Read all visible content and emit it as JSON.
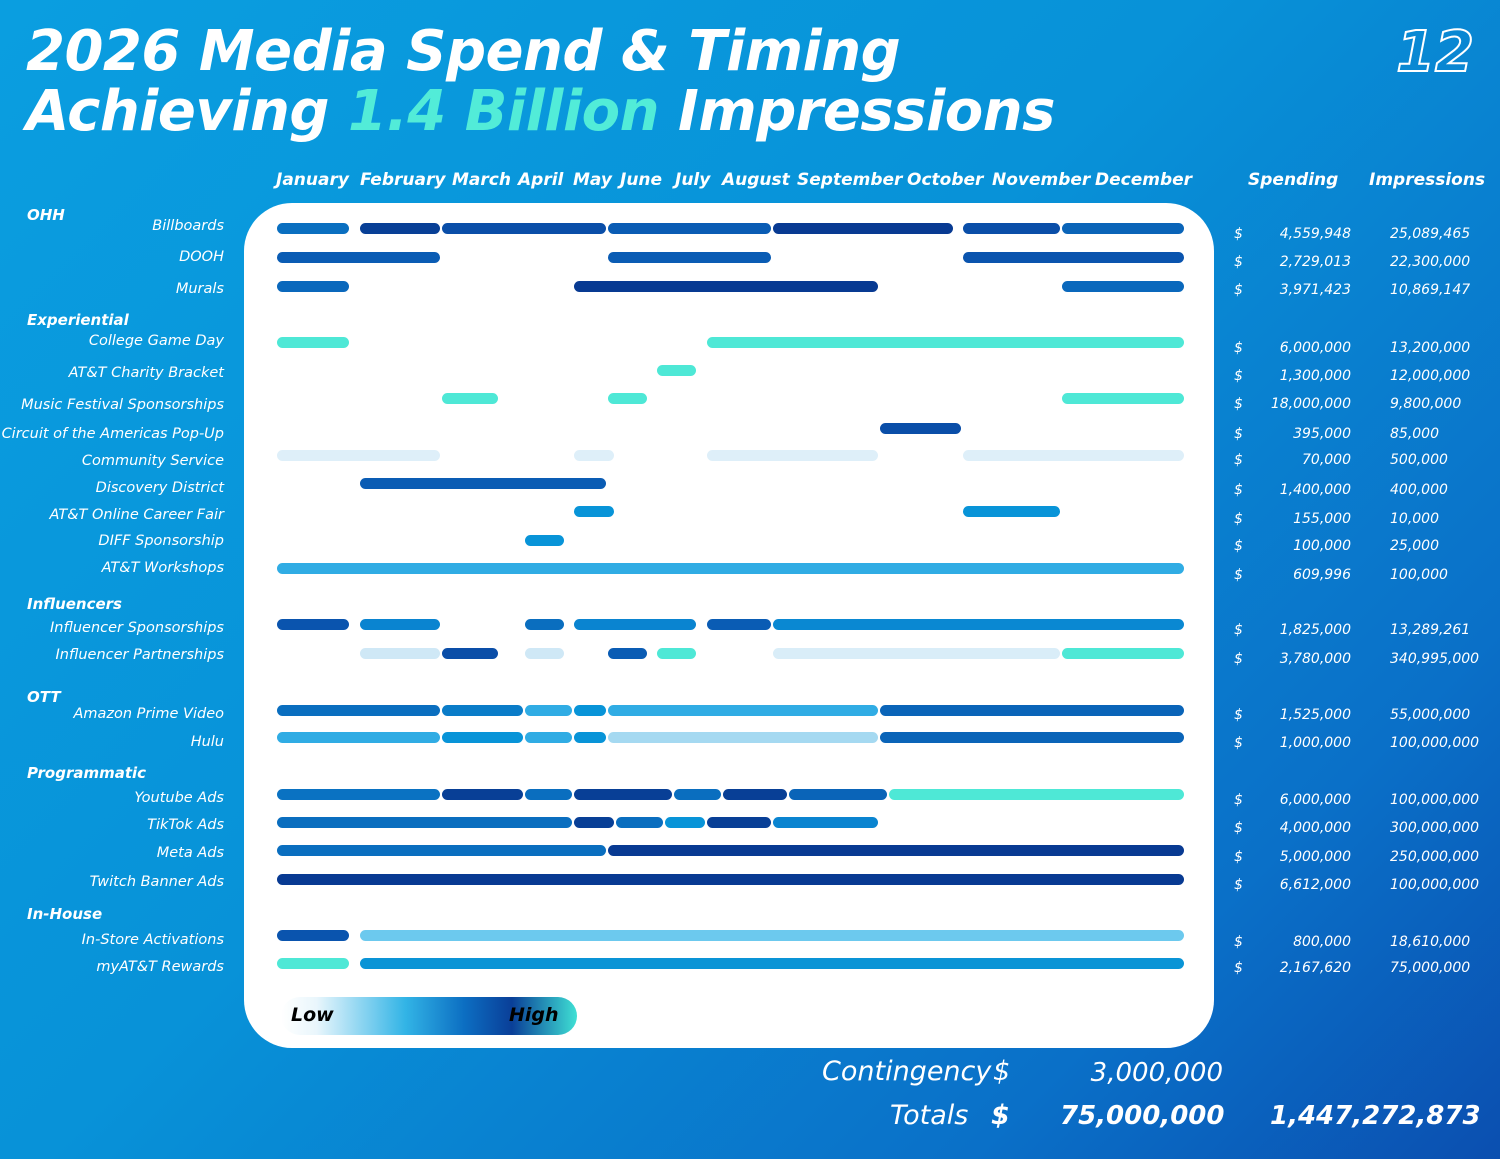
{
  "title": {
    "line1": "2026 Media Spend & Timing",
    "line2_pre": "Achieving ",
    "line2_accent": "1.4 Billion",
    "line2_post": " Impressions"
  },
  "page_number": "12",
  "colors": {
    "accent": "#52ecd8",
    "panel": "#ffffff",
    "background": "#0892d8"
  },
  "columns": {
    "spending": "Spending",
    "impressions": "Impressions"
  },
  "legend": {
    "low": "Low",
    "high": "High"
  },
  "footer": {
    "contingency_label": "Contingency",
    "contingency_currency": "$",
    "contingency_value": "3,000,000",
    "totals_label": "Totals",
    "totals_currency": "$",
    "totals_spend": "75,000,000",
    "totals_impressions": "1,447,272,873"
  },
  "chart_data": {
    "type": "table",
    "months": [
      "January",
      "February",
      "March",
      "April",
      "May",
      "June",
      "July",
      "August",
      "September",
      "October",
      "November",
      "December"
    ],
    "categories": [
      {
        "name": "OHH",
        "rows": [
          {
            "label": "Billboards",
            "currency": "$",
            "spending": "4,559,948",
            "impressions": "25,089,465",
            "segments": [
              {
                "start": 1,
                "end": 1.9,
                "color": "#0a6fc0"
              },
              {
                "start": 2,
                "end": 3,
                "color": "#083f96"
              },
              {
                "start": 3,
                "end": 5,
                "color": "#0a4ea8"
              },
              {
                "start": 5,
                "end": 7,
                "color": "#0a5cb4"
              },
              {
                "start": 7,
                "end": 9.2,
                "color": "#083a92"
              },
              {
                "start": 9.3,
                "end": 10.5,
                "color": "#0a4ea8"
              },
              {
                "start": 10.5,
                "end": 12,
                "color": "#0a64b8"
              }
            ]
          },
          {
            "label": "DOOH",
            "currency": "$",
            "spending": "2,729,013",
            "impressions": "22,300,000",
            "segments": [
              {
                "start": 1,
                "end": 3,
                "color": "#0a5cb4"
              },
              {
                "start": 5,
                "end": 7,
                "color": "#0a5cb4"
              },
              {
                "start": 9.3,
                "end": 12,
                "color": "#0a54ae"
              }
            ]
          },
          {
            "label": "Murals",
            "currency": "$",
            "spending": "3,971,423",
            "impressions": "10,869,147",
            "segments": [
              {
                "start": 1,
                "end": 1.9,
                "color": "#0a68bc"
              },
              {
                "start": 4.6,
                "end": 8.3,
                "color": "#083a92"
              },
              {
                "start": 10.5,
                "end": 12,
                "color": "#0a68bc"
              }
            ]
          }
        ]
      },
      {
        "name": "Experiential",
        "rows": [
          {
            "label": "College Game Day",
            "currency": "$",
            "spending": "6,000,000",
            "impressions": "13,200,000",
            "segments": [
              {
                "start": 1,
                "end": 1.9,
                "color": "#4ee8d6"
              },
              {
                "start": 6.2,
                "end": 12,
                "color": "#4ee8d6"
              }
            ]
          },
          {
            "label": "AT&T Charity Bracket",
            "currency": "$",
            "spending": "1,300,000",
            "impressions": "12,000,000",
            "segments": [
              {
                "start": 5.6,
                "end": 6.1,
                "color": "#4ee8d6"
              }
            ]
          },
          {
            "label": "Music Festival Sponsorships",
            "currency": "$",
            "spending": "18,000,000",
            "impressions": "9,800,000",
            "segments": [
              {
                "start": 3,
                "end": 3.7,
                "color": "#4ee8d6"
              },
              {
                "start": 5,
                "end": 5.5,
                "color": "#4ee8d6"
              },
              {
                "start": 10.5,
                "end": 12,
                "color": "#4ee8d6"
              }
            ]
          },
          {
            "label": "Circuit of the Americas Pop-Up",
            "currency": "$",
            "spending": "395,000",
            "impressions": "85,000",
            "segments": [
              {
                "start": 8.3,
                "end": 9.3,
                "color": "#0a4ea8"
              }
            ]
          },
          {
            "label": "Community Service",
            "currency": "$",
            "spending": "70,000",
            "impressions": "500,000",
            "segments": [
              {
                "start": 1,
                "end": 3,
                "color": "#deeff9"
              },
              {
                "start": 4.6,
                "end": 5.1,
                "color": "#deeff9"
              },
              {
                "start": 6.2,
                "end": 8.3,
                "color": "#deeff9"
              },
              {
                "start": 9.3,
                "end": 12,
                "color": "#deeff9"
              }
            ]
          },
          {
            "label": "Discovery District",
            "currency": "$",
            "spending": "1,400,000",
            "impressions": "400,000",
            "segments": [
              {
                "start": 2,
                "end": 5,
                "color": "#0a5cb4"
              }
            ]
          },
          {
            "label": "AT&T Online Career Fair",
            "currency": "$",
            "spending": "155,000",
            "impressions": "10,000",
            "segments": [
              {
                "start": 4.6,
                "end": 5.1,
                "color": "#0894d8"
              },
              {
                "start": 9.3,
                "end": 10.5,
                "color": "#0894d8"
              }
            ]
          },
          {
            "label": "DIFF Sponsorship",
            "currency": "$",
            "spending": "100,000",
            "impressions": "25,000",
            "segments": [
              {
                "start": 4,
                "end": 4.5,
                "color": "#0894d8"
              }
            ]
          },
          {
            "label": "AT&T Workshops",
            "currency": "$",
            "spending": "609,996",
            "impressions": "100,000",
            "segments": [
              {
                "start": 1,
                "end": 12,
                "color": "#30ace4"
              }
            ]
          }
        ]
      },
      {
        "name": "Influencers",
        "rows": [
          {
            "label": "Influencer Sponsorships",
            "currency": "$",
            "spending": "1,825,000",
            "impressions": "13,289,261",
            "segments": [
              {
                "start": 1,
                "end": 1.9,
                "color": "#0a54ae"
              },
              {
                "start": 2,
                "end": 3,
                "color": "#0a84d0"
              },
              {
                "start": 4,
                "end": 4.5,
                "color": "#0a6ebf"
              },
              {
                "start": 4.6,
                "end": 6.1,
                "color": "#0a84d0"
              },
              {
                "start": 6.2,
                "end": 7,
                "color": "#0a5cb4"
              },
              {
                "start": 7,
                "end": 12,
                "color": "#0a88d2"
              }
            ]
          },
          {
            "label": "Influencer Partnerships",
            "currency": "$",
            "spending": "3,780,000",
            "impressions": "340,995,000",
            "segments": [
              {
                "start": 2,
                "end": 3,
                "color": "#cfe8f6"
              },
              {
                "start": 3,
                "end": 3.7,
                "color": "#0a4ea8"
              },
              {
                "start": 4,
                "end": 4.5,
                "color": "#cfe8f6"
              },
              {
                "start": 5,
                "end": 5.5,
                "color": "#0a5cb4"
              },
              {
                "start": 5.6,
                "end": 6.1,
                "color": "#4ee8d6"
              },
              {
                "start": 7,
                "end": 10.5,
                "color": "#d9edf8"
              },
              {
                "start": 10.5,
                "end": 12,
                "color": "#4ee8d6"
              }
            ]
          }
        ]
      },
      {
        "name": "OTT",
        "rows": [
          {
            "label": "Amazon Prime Video",
            "currency": "$",
            "spending": "1,525,000",
            "impressions": "55,000,000",
            "segments": [
              {
                "start": 1,
                "end": 3,
                "color": "#0a6ebf"
              },
              {
                "start": 3,
                "end": 4,
                "color": "#0a7cc8"
              },
              {
                "start": 4,
                "end": 4.6,
                "color": "#30ace4"
              },
              {
                "start": 4.6,
                "end": 5,
                "color": "#0894d8"
              },
              {
                "start": 5,
                "end": 8.3,
                "color": "#30ace4"
              },
              {
                "start": 8.3,
                "end": 12,
                "color": "#0a64b8"
              }
            ]
          },
          {
            "label": "Hulu",
            "currency": "$",
            "spending": "1,000,000",
            "impressions": "100,000,000",
            "segments": [
              {
                "start": 1,
                "end": 3,
                "color": "#30ace4"
              },
              {
                "start": 3,
                "end": 4,
                "color": "#0894d8"
              },
              {
                "start": 4,
                "end": 4.6,
                "color": "#30ace4"
              },
              {
                "start": 4.6,
                "end": 5,
                "color": "#0894d8"
              },
              {
                "start": 5,
                "end": 8.3,
                "color": "#a5d9f1"
              },
              {
                "start": 8.3,
                "end": 12,
                "color": "#0a64b8"
              }
            ]
          }
        ]
      },
      {
        "name": "Programmatic",
        "rows": [
          {
            "label": "Youtube Ads",
            "currency": "$",
            "spending": "6,000,000",
            "impressions": "100,000,000",
            "segments": [
              {
                "start": 1,
                "end": 3,
                "color": "#0a72c2"
              },
              {
                "start": 3,
                "end": 4,
                "color": "#083f96"
              },
              {
                "start": 4,
                "end": 4.6,
                "color": "#0a6ebf"
              },
              {
                "start": 4.6,
                "end": 5.8,
                "color": "#083f96"
              },
              {
                "start": 5.8,
                "end": 6.4,
                "color": "#0a6ebf"
              },
              {
                "start": 6.4,
                "end": 7.2,
                "color": "#083f96"
              },
              {
                "start": 7.2,
                "end": 8.4,
                "color": "#0a64b8"
              },
              {
                "start": 8.4,
                "end": 12,
                "color": "#4ee8d6"
              }
            ]
          },
          {
            "label": "TikTok Ads",
            "currency": "$",
            "spending": "4,000,000",
            "impressions": "300,000,000",
            "segments": [
              {
                "start": 1,
                "end": 4.6,
                "color": "#0a6ebf"
              },
              {
                "start": 4.6,
                "end": 5.1,
                "color": "#083f96"
              },
              {
                "start": 5.1,
                "end": 5.7,
                "color": "#0a6ebf"
              },
              {
                "start": 5.7,
                "end": 6.2,
                "color": "#0894d8"
              },
              {
                "start": 6.2,
                "end": 7,
                "color": "#083f96"
              },
              {
                "start": 7,
                "end": 8.3,
                "color": "#0a84d0"
              }
            ]
          },
          {
            "label": "Meta Ads",
            "currency": "$",
            "spending": "5,000,000",
            "impressions": "250,000,000",
            "segments": [
              {
                "start": 1,
                "end": 5,
                "color": "#0a6ebf"
              },
              {
                "start": 5,
                "end": 12,
                "color": "#083a92"
              }
            ]
          },
          {
            "label": "Twitch Banner Ads",
            "currency": "$",
            "spending": "6,612,000",
            "impressions": "100,000,000",
            "segments": [
              {
                "start": 1,
                "end": 12,
                "color": "#083a92"
              }
            ]
          }
        ]
      },
      {
        "name": "In-House",
        "rows": [
          {
            "label": "In-Store Activations",
            "currency": "$",
            "spending": "800,000",
            "impressions": "18,610,000",
            "segments": [
              {
                "start": 1,
                "end": 1.9,
                "color": "#0a54ae"
              },
              {
                "start": 2,
                "end": 12,
                "color": "#6cc9ee"
              }
            ]
          },
          {
            "label": "myAT&T Rewards",
            "currency": "$",
            "spending": "2,167,620",
            "impressions": "75,000,000",
            "segments": [
              {
                "start": 1,
                "end": 1.9,
                "color": "#4ee8d6"
              },
              {
                "start": 2,
                "end": 12,
                "color": "#0a94d6"
              }
            ]
          }
        ]
      }
    ]
  }
}
